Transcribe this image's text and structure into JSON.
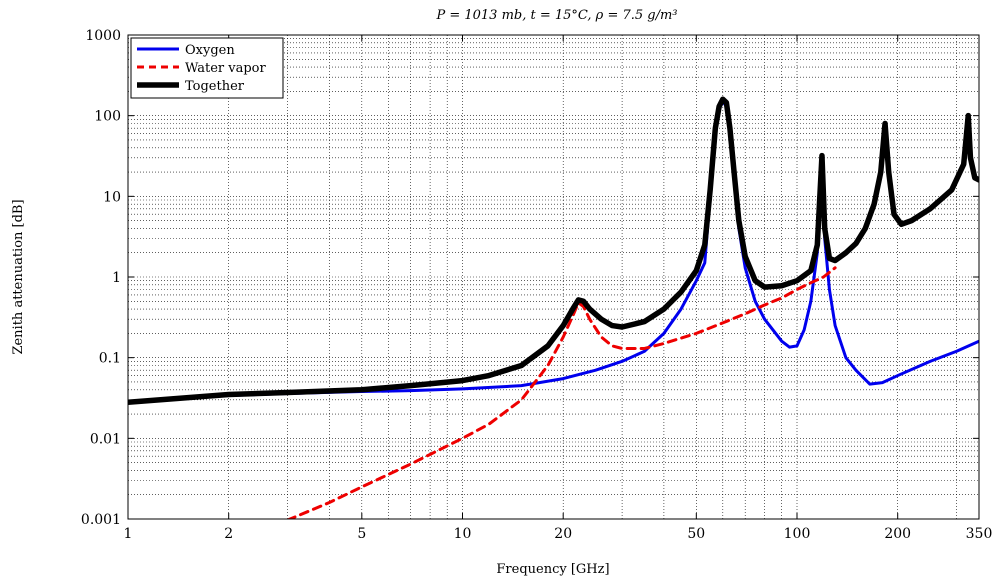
{
  "chart_data": {
    "type": "line",
    "title": "P = 1013 mb, t = 15°C, ρ = 7.5 g/m³",
    "xlabel": "Frequency [GHz]",
    "ylabel": "Zenith attenuation [dB]",
    "x_scale": "log",
    "y_scale": "log",
    "xlim": [
      1,
      350
    ],
    "ylim": [
      0.001,
      1000
    ],
    "x_ticks": [
      {
        "value": 1,
        "label": "1"
      },
      {
        "value": 2,
        "label": "2"
      },
      {
        "value": 5,
        "label": "5"
      },
      {
        "value": 10,
        "label": "10"
      },
      {
        "value": 20,
        "label": "20"
      },
      {
        "value": 50,
        "label": "50"
      },
      {
        "value": 100,
        "label": "100"
      },
      {
        "value": 200,
        "label": "200"
      },
      {
        "value": 350,
        "label": "350"
      }
    ],
    "y_ticks": [
      {
        "value": 0.001,
        "label": "0.001"
      },
      {
        "value": 0.01,
        "label": "0.01"
      },
      {
        "value": 0.1,
        "label": "0.1"
      },
      {
        "value": 1,
        "label": "1"
      },
      {
        "value": 10,
        "label": "10"
      },
      {
        "value": 100,
        "label": "100"
      },
      {
        "value": 1000,
        "label": "1000"
      }
    ],
    "grid": true,
    "legend_position": "top-left",
    "series": [
      {
        "name": "Oxygen",
        "color": "#0000ee",
        "style": "solid",
        "points": [
          [
            1,
            0.028
          ],
          [
            2,
            0.034
          ],
          [
            3,
            0.036
          ],
          [
            5,
            0.038
          ],
          [
            7,
            0.039
          ],
          [
            10,
            0.041
          ],
          [
            15,
            0.045
          ],
          [
            20,
            0.055
          ],
          [
            25,
            0.07
          ],
          [
            30,
            0.09
          ],
          [
            35,
            0.12
          ],
          [
            40,
            0.2
          ],
          [
            45,
            0.4
          ],
          [
            50,
            0.9
          ],
          [
            53,
            1.5
          ],
          [
            55,
            10
          ],
          [
            57,
            60
          ],
          [
            58.5,
            120
          ],
          [
            60,
            150
          ],
          [
            61.5,
            130
          ],
          [
            63,
            60
          ],
          [
            65,
            15
          ],
          [
            67,
            4
          ],
          [
            70,
            1.3
          ],
          [
            75,
            0.5
          ],
          [
            80,
            0.3
          ],
          [
            90,
            0.16
          ],
          [
            95,
            0.135
          ],
          [
            100,
            0.14
          ],
          [
            105,
            0.22
          ],
          [
            110,
            0.5
          ],
          [
            115,
            2
          ],
          [
            118.75,
            30
          ],
          [
            121,
            3
          ],
          [
            125,
            0.7
          ],
          [
            130,
            0.25
          ],
          [
            140,
            0.1
          ],
          [
            150,
            0.07
          ],
          [
            165,
            0.047
          ],
          [
            180,
            0.049
          ],
          [
            200,
            0.06
          ],
          [
            250,
            0.09
          ],
          [
            300,
            0.12
          ],
          [
            350,
            0.16
          ]
        ]
      },
      {
        "name": "Water vapor",
        "color": "#ee0000",
        "style": "dashed",
        "points": [
          [
            3,
            0.00097
          ],
          [
            4,
            0.0016
          ],
          [
            5,
            0.0025
          ],
          [
            7,
            0.0048
          ],
          [
            10,
            0.01
          ],
          [
            12,
            0.015
          ],
          [
            15,
            0.03
          ],
          [
            18,
            0.08
          ],
          [
            20,
            0.18
          ],
          [
            21.5,
            0.35
          ],
          [
            22.2,
            0.48
          ],
          [
            23,
            0.43
          ],
          [
            24,
            0.3
          ],
          [
            26,
            0.18
          ],
          [
            28,
            0.14
          ],
          [
            30,
            0.13
          ],
          [
            35,
            0.13
          ],
          [
            40,
            0.15
          ],
          [
            50,
            0.2
          ],
          [
            60,
            0.27
          ],
          [
            70,
            0.35
          ],
          [
            80,
            0.45
          ],
          [
            90,
            0.55
          ],
          [
            100,
            0.7
          ],
          [
            110,
            0.85
          ],
          [
            120,
            1.0
          ],
          [
            130,
            1.3
          ]
        ]
      },
      {
        "name": "Together",
        "color": "#000000",
        "style": "solid-thick",
        "points": [
          [
            1,
            0.028
          ],
          [
            2,
            0.035
          ],
          [
            3,
            0.037
          ],
          [
            5,
            0.04
          ],
          [
            7,
            0.045
          ],
          [
            10,
            0.052
          ],
          [
            12,
            0.06
          ],
          [
            15,
            0.08
          ],
          [
            18,
            0.14
          ],
          [
            20,
            0.25
          ],
          [
            21.5,
            0.42
          ],
          [
            22.2,
            0.52
          ],
          [
            23,
            0.5
          ],
          [
            24,
            0.4
          ],
          [
            26,
            0.3
          ],
          [
            28,
            0.25
          ],
          [
            30,
            0.24
          ],
          [
            35,
            0.28
          ],
          [
            40,
            0.4
          ],
          [
            45,
            0.65
          ],
          [
            50,
            1.2
          ],
          [
            53,
            2.5
          ],
          [
            55,
            12
          ],
          [
            57,
            70
          ],
          [
            58.5,
            130
          ],
          [
            60,
            160
          ],
          [
            61.5,
            145
          ],
          [
            63,
            70
          ],
          [
            65,
            18
          ],
          [
            67,
            5
          ],
          [
            70,
            1.8
          ],
          [
            75,
            0.9
          ],
          [
            80,
            0.75
          ],
          [
            90,
            0.78
          ],
          [
            100,
            0.9
          ],
          [
            110,
            1.2
          ],
          [
            115,
            2.5
          ],
          [
            118.75,
            32
          ],
          [
            121,
            4
          ],
          [
            125,
            1.7
          ],
          [
            130,
            1.6
          ],
          [
            140,
            2
          ],
          [
            150,
            2.6
          ],
          [
            160,
            4
          ],
          [
            170,
            8
          ],
          [
            178,
            20
          ],
          [
            183.3,
            80
          ],
          [
            188,
            20
          ],
          [
            195,
            6
          ],
          [
            205,
            4.5
          ],
          [
            220,
            5
          ],
          [
            250,
            7
          ],
          [
            290,
            12
          ],
          [
            315,
            25
          ],
          [
            325,
            100
          ],
          [
            330,
            30
          ],
          [
            340,
            17
          ],
          [
            350,
            16
          ]
        ]
      }
    ]
  }
}
